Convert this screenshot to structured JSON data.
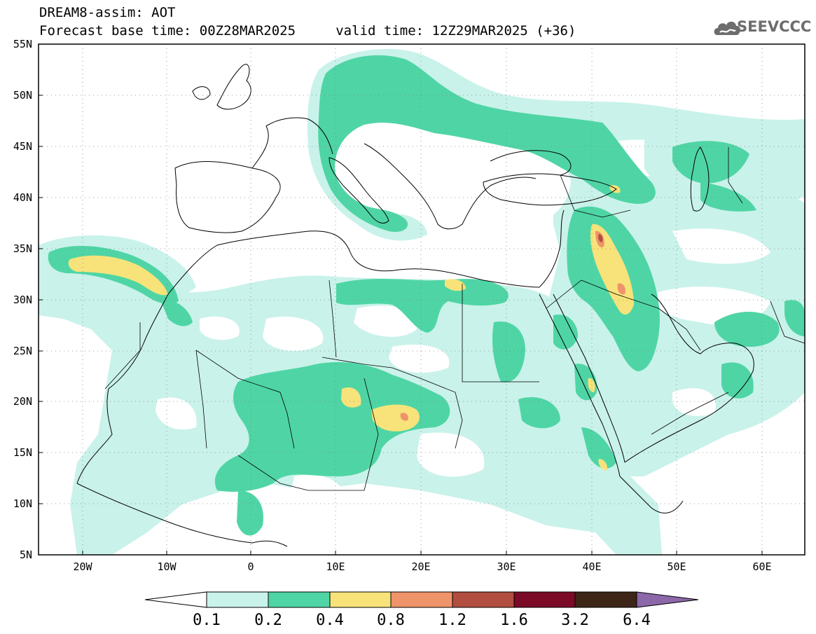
{
  "title": {
    "line1": "DREAM8-assim: AOT",
    "line2": "Forecast base time: 00Z28MAR2025     valid time: 12Z29MAR2025 (+36)"
  },
  "logo": {
    "text": "SEEVCCC",
    "icon": "cloud-icon",
    "color": "#6d6d6d"
  },
  "map": {
    "variable": "AOT",
    "lon_range": [
      -25,
      65
    ],
    "lat_range": [
      5,
      55
    ],
    "gridlines": "dotted",
    "lat_ticks": [
      "55N",
      "50N",
      "45N",
      "40N",
      "35N",
      "30N",
      "25N",
      "20N",
      "15N",
      "10N",
      "5N"
    ],
    "lon_ticks": [
      "20W",
      "10W",
      "0",
      "10E",
      "20E",
      "30E",
      "40E",
      "50E",
      "60E"
    ]
  },
  "colorbar": {
    "levels": [
      "0.1",
      "0.2",
      "0.4",
      "0.8",
      "1.2",
      "1.6",
      "3.2",
      "6.4"
    ],
    "colors": [
      "#ffffff",
      "#c9f2ea",
      "#4fd5a5",
      "#f7e37a",
      "#ef946a",
      "#b14e40",
      "#7a0a26",
      "#3d2618",
      "#8b68a9"
    ]
  },
  "colors": {
    "c1": "#c9f2ea",
    "c2": "#4fd5a5",
    "c3": "#f7e37a",
    "c4": "#ef946a",
    "c5": "#b14e40"
  }
}
